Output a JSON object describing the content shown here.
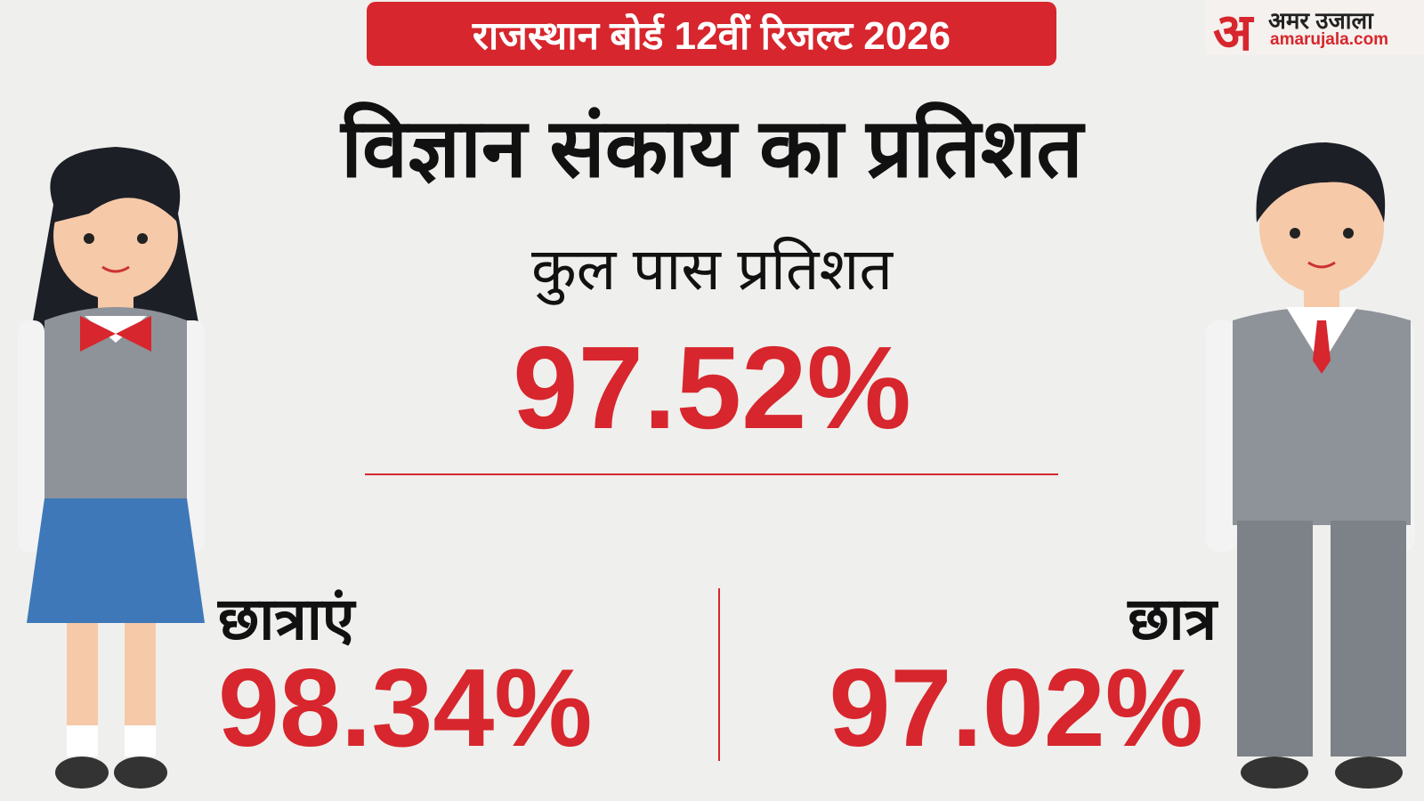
{
  "header": {
    "banner": "राजस्थान बोर्ड 12वीं रिजल्ट 2026",
    "logo_mark": "अ",
    "logo_name": "अमर उजाला",
    "logo_site": "amarujala.com"
  },
  "title": "विज्ञान संकाय का प्रतिशत",
  "total": {
    "label": "कुल पास प्रतिशत",
    "value": "97.52%"
  },
  "girls": {
    "label": "छात्राएं",
    "value": "98.34%"
  },
  "boys": {
    "label": "छात्र",
    "value": "97.02%"
  }
}
